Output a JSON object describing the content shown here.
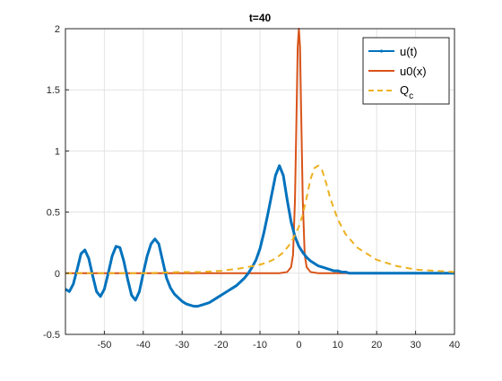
{
  "chart_data": {
    "type": "line",
    "title": "t=40",
    "xlabel": "",
    "ylabel": "",
    "xlim": [
      -60,
      40
    ],
    "ylim": [
      -0.5,
      2
    ],
    "xticks": [
      -50,
      -40,
      -30,
      -20,
      -10,
      0,
      10,
      20,
      30,
      40
    ],
    "yticks": [
      -0.5,
      0,
      0.5,
      1,
      1.5,
      2
    ],
    "xtick_labels": [
      "-50",
      "-40",
      "-30",
      "-20",
      "-10",
      "0",
      "10",
      "20",
      "30",
      "40"
    ],
    "ytick_labels": [
      "-0.5",
      "0",
      "0.5",
      "1",
      "1.5",
      "2"
    ],
    "grid": true,
    "legend_position": "top-right",
    "series": [
      {
        "name": "u(t)",
        "style": "solid",
        "color": "#0072BD",
        "x": [
          -60,
          -59,
          -58,
          -57,
          -56,
          -55,
          -54,
          -53,
          -52,
          -51,
          -50,
          -49,
          -48,
          -47,
          -46,
          -45,
          -44,
          -43,
          -42,
          -41,
          -40,
          -39,
          -38,
          -37,
          -36,
          -35,
          -34,
          -33,
          -32,
          -31,
          -30,
          -29,
          -28,
          -27,
          -26,
          -25,
          -24,
          -23,
          -22,
          -21,
          -20,
          -19,
          -18,
          -17,
          -16,
          -15,
          -14,
          -13,
          -12,
          -11,
          -10,
          -9,
          -8,
          -7,
          -6,
          -5,
          -4,
          -3,
          -2,
          -1,
          0,
          1,
          2,
          3,
          4,
          5,
          6,
          7,
          8,
          9,
          10,
          11,
          12,
          13,
          14,
          15,
          16,
          17,
          18,
          19,
          20,
          22,
          24,
          26,
          28,
          30,
          32,
          34,
          36,
          38,
          40
        ],
        "y": [
          -0.13,
          -0.15,
          -0.09,
          0.03,
          0.16,
          0.19,
          0.12,
          -0.02,
          -0.15,
          -0.19,
          -0.13,
          0.0,
          0.14,
          0.22,
          0.21,
          0.1,
          -0.05,
          -0.18,
          -0.22,
          -0.15,
          0.0,
          0.14,
          0.24,
          0.28,
          0.24,
          0.1,
          -0.04,
          -0.12,
          -0.17,
          -0.2,
          -0.23,
          -0.25,
          -0.26,
          -0.27,
          -0.27,
          -0.26,
          -0.25,
          -0.24,
          -0.22,
          -0.2,
          -0.18,
          -0.16,
          -0.14,
          -0.12,
          -0.1,
          -0.07,
          -0.04,
          0.0,
          0.05,
          0.11,
          0.2,
          0.33,
          0.48,
          0.64,
          0.8,
          0.88,
          0.8,
          0.6,
          0.42,
          0.3,
          0.22,
          0.17,
          0.13,
          0.1,
          0.08,
          0.06,
          0.05,
          0.04,
          0.03,
          0.02,
          0.02,
          0.01,
          0.01,
          0.0,
          0.0,
          0.0,
          0.0,
          0.0,
          0.0,
          0.0,
          0.0,
          0.0,
          0.0,
          0.0,
          0.0,
          0.0,
          0.0,
          0.0,
          0.0,
          0.0,
          0.0
        ],
        "x_shift": 0
      },
      {
        "name": "u0(x)",
        "style": "solid",
        "color": "#D95319",
        "x": [
          -60,
          -10,
          -5,
          -3,
          -2,
          -1.5,
          -1,
          -0.6,
          -0.3,
          0,
          0.3,
          0.6,
          1,
          1.5,
          2,
          3,
          5,
          10,
          40
        ],
        "y": [
          0,
          0,
          0,
          0.01,
          0.05,
          0.15,
          0.6,
          1.3,
          1.85,
          2.0,
          1.85,
          1.3,
          0.6,
          0.15,
          0.05,
          0.01,
          0,
          0,
          0
        ]
      },
      {
        "name": "Q_c",
        "legend_label": "Q",
        "legend_subscript": "c",
        "style": "dashed",
        "color": "#EDB120",
        "x": [
          -60,
          -50,
          -40,
          -30,
          -25,
          -20,
          -15,
          -10,
          -8,
          -6,
          -4,
          -2,
          0,
          1,
          2,
          3,
          4,
          5,
          6,
          7,
          8,
          10,
          12,
          15,
          20,
          25,
          30,
          35,
          40
        ],
        "y": [
          0.0,
          0.0,
          0.0,
          0.01,
          0.01,
          0.02,
          0.04,
          0.07,
          0.09,
          0.12,
          0.17,
          0.25,
          0.38,
          0.48,
          0.62,
          0.77,
          0.86,
          0.88,
          0.84,
          0.74,
          0.62,
          0.44,
          0.32,
          0.21,
          0.11,
          0.06,
          0.03,
          0.02,
          0.01
        ]
      }
    ]
  }
}
